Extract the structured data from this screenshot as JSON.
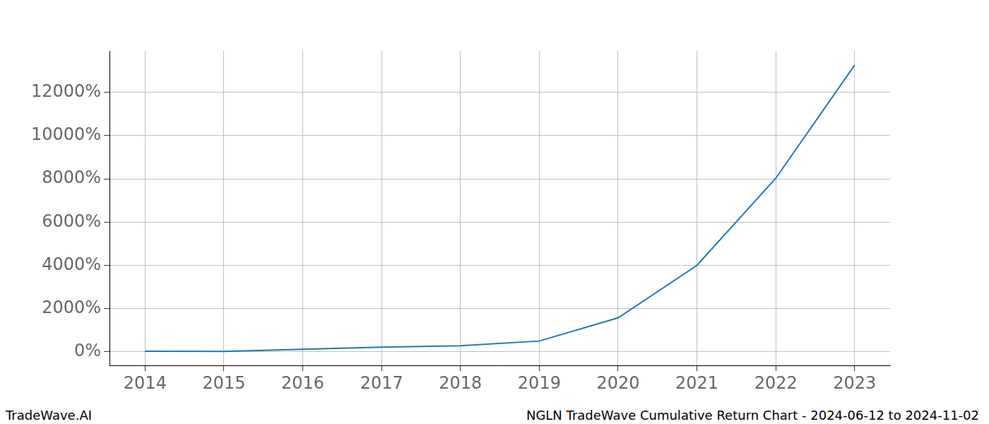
{
  "chart_data": {
    "type": "line",
    "title": "NGLN TradeWave Cumulative Return Chart - 2024-06-12 to 2024-11-02",
    "source": "TradeWave.AI",
    "x": [
      2014,
      2015,
      2016,
      2017,
      2018,
      2019,
      2020,
      2021,
      2022,
      2023
    ],
    "values": [
      30,
      20,
      120,
      220,
      280,
      500,
      1575,
      4000,
      8030,
      13260
    ],
    "color": "#1f77b4",
    "xlim": [
      2013.55,
      2023.45
    ],
    "xticks": [
      2014,
      2015,
      2016,
      2017,
      2018,
      2019,
      2020,
      2021,
      2022,
      2023
    ],
    "ylim": [
      -630,
      13920
    ],
    "yticks": [
      {
        "value": 0,
        "label": "0%"
      },
      {
        "value": 2000,
        "label": "2000%"
      },
      {
        "value": 4000,
        "label": "4000%"
      },
      {
        "value": 6000,
        "label": "6000%"
      },
      {
        "value": 8000,
        "label": "8000%"
      },
      {
        "value": 10000,
        "label": "10000%"
      },
      {
        "value": 12000,
        "label": "12000%"
      }
    ],
    "grid": true
  }
}
